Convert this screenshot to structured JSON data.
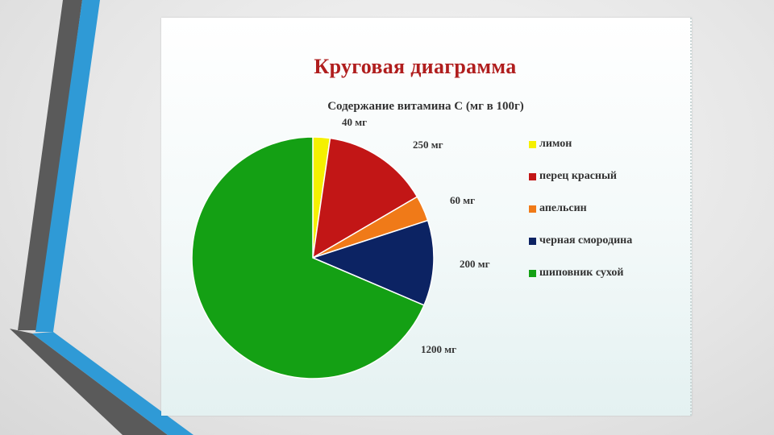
{
  "slide": {
    "title": "Круговая диаграмма"
  },
  "chart_data": {
    "type": "pie",
    "title": "Содержание витамина  С (мг в 100г)",
    "categories": [
      "лимон",
      "перец красный",
      "апельсин",
      "черная смородина",
      "шиповник сухой"
    ],
    "values": [
      40,
      250,
      60,
      200,
      1200
    ],
    "data_labels": [
      "40 мг",
      "250 мг",
      "60 мг",
      "200 мг",
      "1200 мг"
    ],
    "colors": [
      "#f5f000",
      "#c21616",
      "#f07a18",
      "#0c2363",
      "#14a014"
    ],
    "legend_position": "right",
    "start_angle": "top, clockwise"
  }
}
